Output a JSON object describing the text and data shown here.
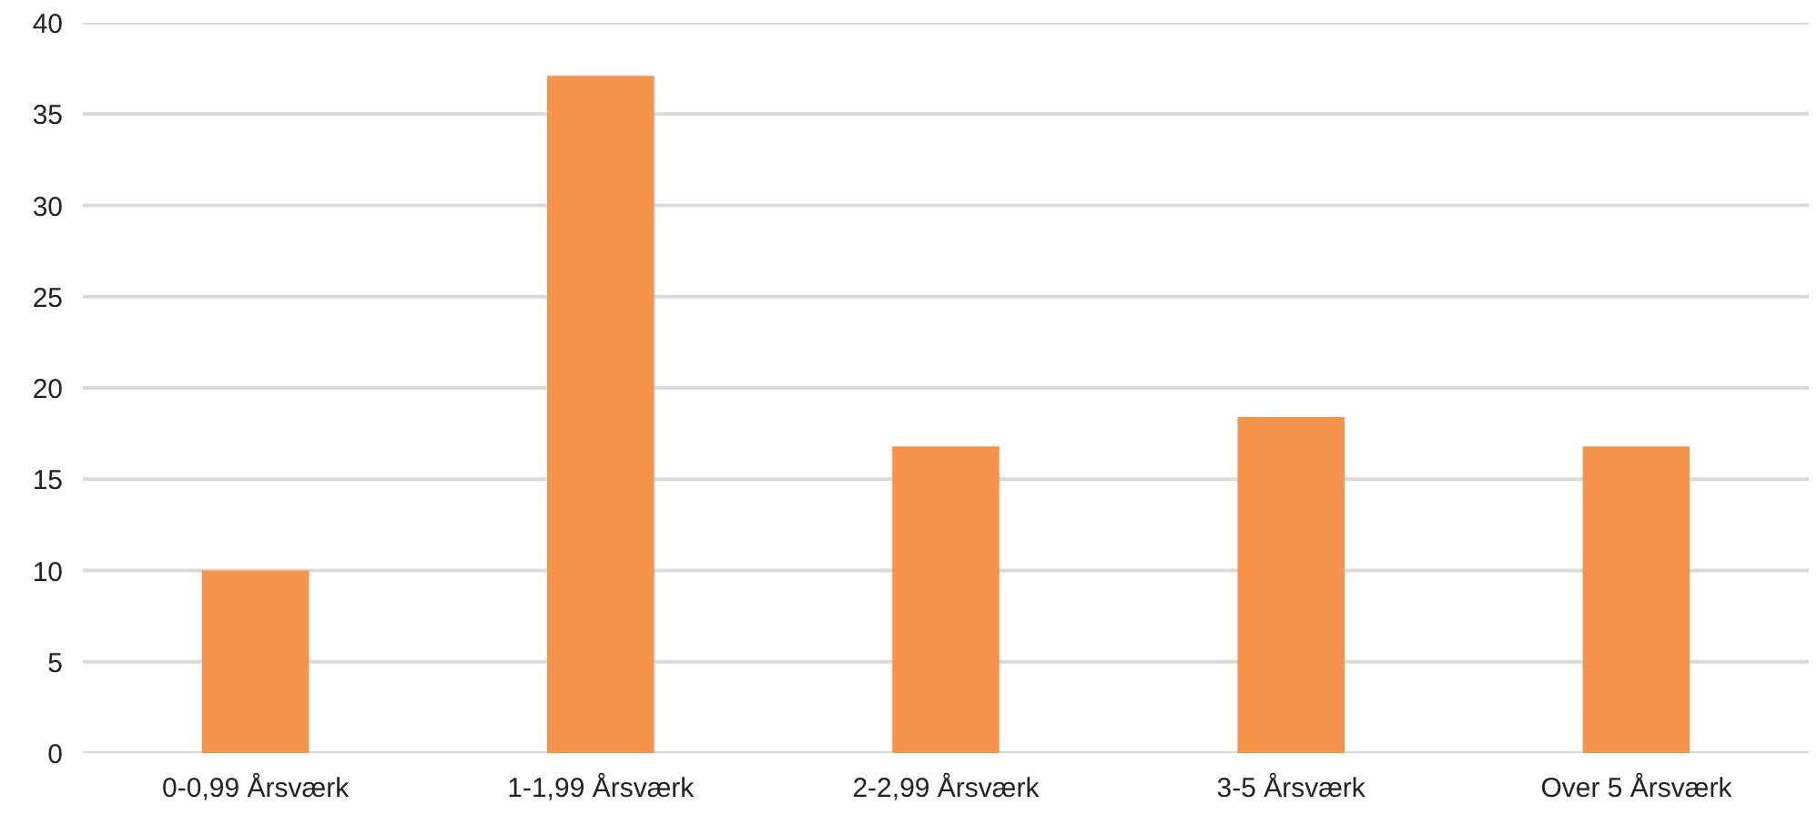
{
  "chart_data": {
    "type": "bar",
    "categories": [
      "0-0,99 Årsværk",
      "1-1,99 Årsværk",
      "2-2,99 Årsværk",
      "3-5 Årsværk",
      "Over 5 Årsværk"
    ],
    "values": [
      10,
      37.1,
      16.8,
      18.4,
      16.8
    ],
    "color": "#f5944a",
    "ylim": [
      0,
      40
    ],
    "yticks": [
      0,
      5,
      10,
      15,
      20,
      25,
      30,
      35,
      40
    ],
    "grid": "y"
  }
}
